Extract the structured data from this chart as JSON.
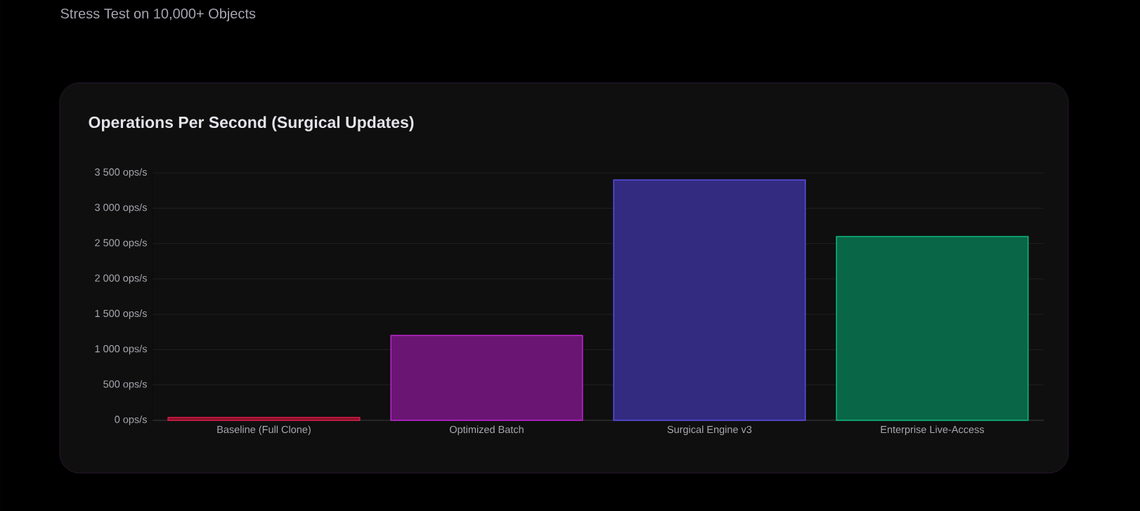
{
  "chart_data": {
    "type": "bar",
    "subtitle": "Stress Test on 10,000+ Objects",
    "title": "Operations Per Second (Surgical Updates)",
    "categories": [
      "Baseline (Full Clone)",
      "Optimized Batch",
      "Surgical Engine v3",
      "Enterprise Live-Access"
    ],
    "values": [
      40,
      1200,
      3400,
      2600
    ],
    "colors": [
      "#e11d48",
      "#c026d3",
      "#5b4fe8",
      "#10b981"
    ],
    "ylim": [
      0,
      3500
    ],
    "yticks": [
      {
        "value": 0,
        "label": "0 ops/s"
      },
      {
        "value": 500,
        "label": "500 ops/s"
      },
      {
        "value": 1000,
        "label": "1 000 ops/s"
      },
      {
        "value": 1500,
        "label": "1 500 ops/s"
      },
      {
        "value": 2000,
        "label": "2 000 ops/s"
      },
      {
        "value": 2500,
        "label": "2 500 ops/s"
      },
      {
        "value": 3000,
        "label": "3 000 ops/s"
      },
      {
        "value": 3500,
        "label": "3 500 ops/s"
      }
    ],
    "grid": "y"
  }
}
